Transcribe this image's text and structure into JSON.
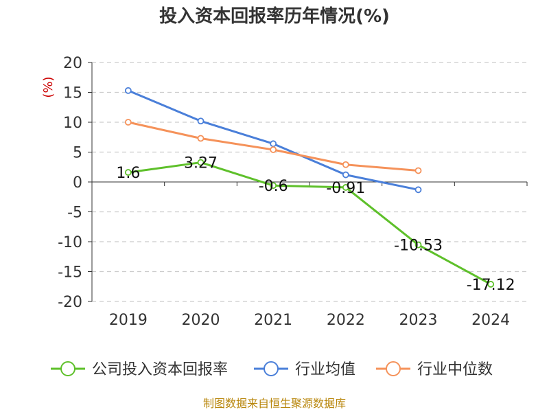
{
  "chart_data": {
    "type": "line",
    "title": "投入资本回报率历年情况(%)",
    "ylabel": "(%)",
    "xlabel": "",
    "categories": [
      "2019",
      "2020",
      "2021",
      "2022",
      "2023",
      "2024"
    ],
    "ylim": [
      -20,
      20
    ],
    "yticks": [
      20,
      15,
      10,
      5,
      0,
      -5,
      -10,
      -15,
      -20
    ],
    "grid": true,
    "legend_position": "bottom",
    "series": [
      {
        "name": "公司投入资本回报率",
        "color": "#5ec02a",
        "values": [
          1.6,
          3.27,
          -0.6,
          -0.91,
          -10.53,
          -17.12
        ],
        "labels": [
          "1.6",
          "3.27",
          "-0.6",
          "-0.91",
          "-10.53",
          "-17.12"
        ]
      },
      {
        "name": "行业均值",
        "color": "#4a7fd9",
        "values": [
          15.3,
          10.2,
          6.4,
          1.2,
          -1.3,
          null
        ]
      },
      {
        "name": "行业中位数",
        "color": "#f5925a",
        "values": [
          10.0,
          7.3,
          5.4,
          2.9,
          1.9,
          null
        ]
      }
    ],
    "source": "制图数据来自恒生聚源数据库"
  }
}
